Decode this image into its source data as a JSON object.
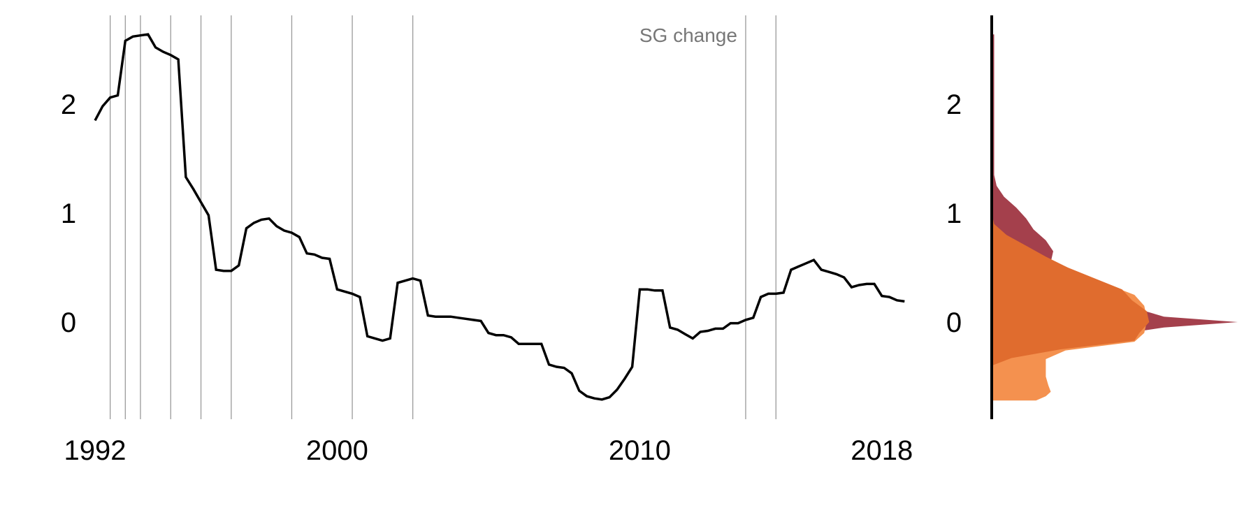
{
  "chart_data": [
    {
      "type": "line",
      "title": "",
      "xlabel": "",
      "ylabel": "",
      "x_ticks": [
        1992,
        2000,
        2010,
        2018
      ],
      "y_ticks": [
        0,
        1,
        2
      ],
      "xlim": [
        1991.5,
        2020.5
      ],
      "ylim": [
        -0.9,
        2.8
      ],
      "grid": false,
      "annotation": {
        "label": "SG change",
        "years": [
          1992.5,
          1993.0,
          1993.5,
          1994.5,
          1995.5,
          1996.5,
          1998.5,
          2000.5,
          2002.5,
          2013.5,
          2014.5
        ]
      },
      "series": [
        {
          "color": "#000000",
          "x": [
            1992.0,
            1992.25,
            1992.5,
            1992.75,
            1993.0,
            1993.25,
            1993.5,
            1993.75,
            1994.0,
            1994.25,
            1994.5,
            1994.75,
            1995.0,
            1995.25,
            1995.5,
            1995.75,
            1996.0,
            1996.25,
            1996.5,
            1996.75,
            1997.0,
            1997.25,
            1997.5,
            1997.75,
            1998.0,
            1998.25,
            1998.5,
            1998.75,
            1999.0,
            1999.25,
            1999.5,
            1999.75,
            2000.0,
            2000.25,
            2000.5,
            2000.75,
            2001.0,
            2001.25,
            2001.5,
            2001.75,
            2002.0,
            2002.25,
            2002.5,
            2002.75,
            2003.0,
            2003.25,
            2003.5,
            2003.75,
            2004.0,
            2004.25,
            2004.5,
            2004.75,
            2005.0,
            2005.25,
            2005.5,
            2005.75,
            2006.0,
            2006.25,
            2006.5,
            2006.75,
            2007.0,
            2007.25,
            2007.5,
            2007.75,
            2008.0,
            2008.25,
            2008.5,
            2008.75,
            2009.0,
            2009.25,
            2009.5,
            2009.75,
            2010.0,
            2010.25,
            2010.5,
            2010.75,
            2011.0,
            2011.25,
            2011.5,
            2011.75,
            2012.0,
            2012.25,
            2012.5,
            2012.75,
            2013.0,
            2013.25,
            2013.5,
            2013.75,
            2014.0,
            2014.25,
            2014.5,
            2014.75,
            2015.0,
            2015.25,
            2015.5,
            2015.75,
            2016.0,
            2016.25,
            2016.5,
            2016.75,
            2017.0,
            2017.25,
            2017.5,
            2017.75,
            2018.0,
            2018.25,
            2018.5,
            2018.75
          ],
          "y": [
            1.85,
            1.98,
            2.06,
            2.08,
            2.58,
            2.62,
            2.63,
            2.64,
            2.52,
            2.48,
            2.45,
            2.41,
            1.33,
            1.22,
            1.1,
            0.98,
            0.48,
            0.47,
            0.47,
            0.52,
            0.86,
            0.91,
            0.94,
            0.95,
            0.88,
            0.84,
            0.82,
            0.78,
            0.63,
            0.62,
            0.59,
            0.58,
            0.3,
            0.28,
            0.26,
            0.23,
            -0.13,
            -0.15,
            -0.17,
            -0.15,
            0.36,
            0.38,
            0.4,
            0.38,
            0.06,
            0.05,
            0.05,
            0.05,
            0.04,
            0.03,
            0.02,
            0.01,
            -0.1,
            -0.12,
            -0.12,
            -0.14,
            -0.2,
            -0.2,
            -0.2,
            -0.2,
            -0.39,
            -0.41,
            -0.42,
            -0.47,
            -0.63,
            -0.68,
            -0.7,
            -0.71,
            -0.69,
            -0.62,
            -0.52,
            -0.41,
            0.3,
            0.3,
            0.29,
            0.29,
            -0.05,
            -0.07,
            -0.11,
            -0.15,
            -0.09,
            -0.08,
            -0.06,
            -0.06,
            -0.01,
            -0.01,
            0.02,
            0.04,
            0.23,
            0.26,
            0.26,
            0.27,
            0.48,
            0.51,
            0.54,
            0.57,
            0.48,
            0.46,
            0.44,
            0.41,
            0.32,
            0.34,
            0.35,
            0.35,
            0.24,
            0.23,
            0.2,
            0.19
          ]
        }
      ]
    },
    {
      "type": "area",
      "orientation": "horizontal",
      "title": "",
      "xlabel": "",
      "ylabel": "",
      "y_ticks": [
        0,
        1,
        2
      ],
      "ylim": [
        -0.9,
        2.8
      ],
      "grid": false,
      "series": [
        {
          "color": "#a4404c",
          "y": [
            2.64,
            2.55,
            2.4,
            2.25,
            2.1,
            1.95,
            1.8,
            1.65,
            1.5,
            1.35,
            1.25,
            1.15,
            1.05,
            0.95,
            0.85,
            0.75,
            0.65,
            0.55,
            0.45,
            0.35,
            0.25,
            0.15,
            0.05,
            0.0,
            -0.05,
            -0.1,
            -0.15,
            -0.2
          ],
          "density": [
            0.01,
            0.01,
            0.01,
            0.01,
            0.01,
            0.01,
            0.01,
            0.01,
            0.01,
            0.01,
            0.02,
            0.05,
            0.1,
            0.14,
            0.17,
            0.22,
            0.25,
            0.24,
            0.22,
            0.32,
            0.45,
            0.55,
            0.7,
            1.0,
            0.7,
            0.55,
            0.45,
            0.4
          ]
        },
        {
          "color": "#f4914f",
          "y": [
            0.9,
            0.8,
            0.7,
            0.6,
            0.5,
            0.4,
            0.32,
            0.25,
            0.15,
            0.05,
            0.0,
            -0.1,
            -0.18,
            -0.26,
            -0.34,
            -0.42,
            -0.5,
            -0.58,
            -0.64,
            -0.68,
            -0.72
          ],
          "density": [
            0.0,
            0.03,
            0.08,
            0.14,
            0.25,
            0.37,
            0.5,
            0.58,
            0.62,
            0.63,
            0.63,
            0.62,
            0.58,
            0.3,
            0.22,
            0.22,
            0.22,
            0.23,
            0.24,
            0.22,
            0.18
          ]
        },
        {
          "color": "#e06c2e",
          "y": [
            1.0,
            0.9,
            0.8,
            0.7,
            0.6,
            0.5,
            0.4,
            0.3,
            0.2,
            0.1,
            0.0,
            -0.1,
            -0.17,
            -0.25,
            -0.33,
            -0.4
          ],
          "density": [
            0.0,
            0.01,
            0.06,
            0.14,
            0.22,
            0.31,
            0.42,
            0.53,
            0.57,
            0.63,
            0.64,
            0.6,
            0.58,
            0.28,
            0.08,
            0.0
          ]
        }
      ]
    }
  ]
}
